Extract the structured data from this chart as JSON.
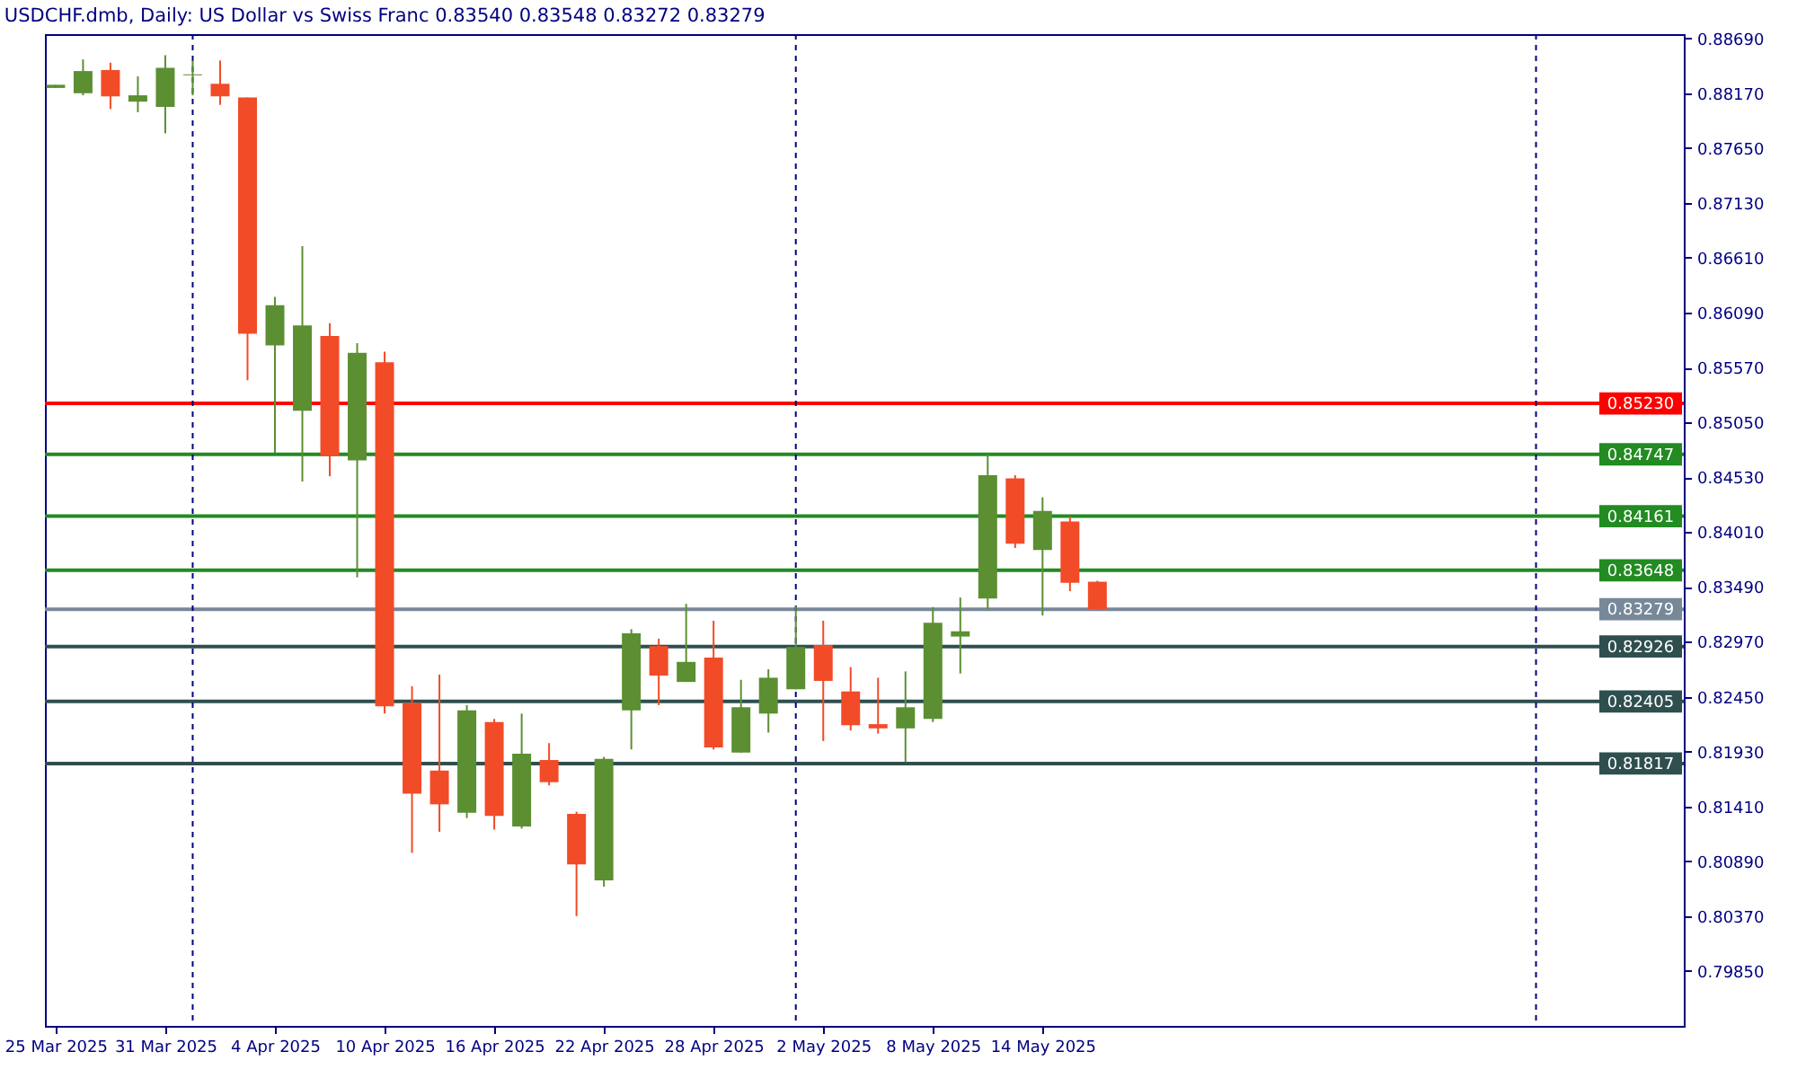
{
  "chart_data": {
    "type": "candlestick",
    "title": "USDCHF.dmb, Daily: US Dollar vs Swiss Franc 0.83540 0.83548 0.83272 0.83279",
    "categories": [
      "25 Mar 2025",
      null,
      null,
      null,
      "31 Mar 2025",
      null,
      null,
      null,
      "4 Apr 2025",
      null,
      null,
      null,
      "10 Apr 2025",
      null,
      null,
      null,
      "16 Apr 2025",
      null,
      null,
      null,
      "22 Apr 2025",
      null,
      null,
      null,
      "28 Apr 2025",
      null,
      null,
      null,
      "2 May 2025",
      null,
      null,
      null,
      "8 May 2025",
      null,
      null,
      null,
      "14 May 2025",
      null,
      null,
      null,
      null,
      null,
      null,
      null,
      null,
      null,
      null,
      null,
      null,
      null,
      null,
      null,
      null,
      null,
      null,
      null,
      null,
      null,
      null,
      null
    ],
    "ohlc": [
      [
        0.8822,
        0.8825,
        0.8822,
        0.8825
      ],
      [
        0.8817,
        0.8849,
        0.8815,
        0.8838
      ],
      [
        0.8839,
        0.8846,
        0.8802,
        0.8814
      ],
      [
        0.8809,
        0.8833,
        0.8799,
        0.8815
      ],
      [
        0.8804,
        0.8853,
        0.8779,
        0.8841
      ],
      [
        0.8834,
        0.8848,
        0.8815,
        0.8835
      ],
      [
        0.8826,
        0.8848,
        0.8806,
        0.8814
      ],
      [
        0.8813,
        0.8813,
        0.8545,
        0.8589
      ],
      [
        0.8578,
        0.8624,
        0.8476,
        0.8616
      ],
      [
        0.8516,
        0.8672,
        0.8449,
        0.8597
      ],
      [
        0.8587,
        0.8599,
        0.8454,
        0.8473
      ],
      [
        0.8469,
        0.858,
        0.8358,
        0.8571
      ],
      [
        0.8562,
        0.8572,
        0.8229,
        0.8236
      ],
      [
        0.8239,
        0.8255,
        0.8097,
        0.8153
      ],
      [
        0.8175,
        0.8266,
        0.8117,
        0.8143
      ],
      [
        0.8135,
        0.8237,
        0.813,
        0.8232
      ],
      [
        0.8221,
        0.8224,
        0.8119,
        0.8132
      ],
      [
        0.8122,
        0.8229,
        0.812,
        0.8191
      ],
      [
        0.8185,
        0.8201,
        0.8161,
        0.8164
      ],
      [
        0.8134,
        0.8136,
        0.8037,
        0.8086
      ],
      [
        0.8071,
        0.8188,
        0.8065,
        0.8186
      ],
      [
        0.8232,
        0.8309,
        0.8195,
        0.8305
      ],
      [
        0.8293,
        0.83,
        0.8237,
        0.8265
      ],
      [
        0.8259,
        0.8333,
        0.8259,
        0.8278
      ],
      [
        0.8282,
        0.8317,
        0.8195,
        0.8197
      ],
      [
        0.8192,
        0.8261,
        0.8192,
        0.8235
      ],
      [
        0.8229,
        0.8271,
        0.8211,
        0.8263
      ],
      [
        0.8252,
        0.8331,
        0.8252,
        0.8292
      ],
      [
        0.8294,
        0.8317,
        0.8203,
        0.826
      ],
      [
        0.825,
        0.8273,
        0.8213,
        0.8218
      ],
      [
        0.8219,
        0.8263,
        0.821,
        0.8215
      ],
      [
        0.8215,
        0.8269,
        0.8183,
        0.8235
      ],
      [
        0.8224,
        0.833,
        0.8221,
        0.8315
      ],
      [
        0.8302,
        0.8339,
        0.8267,
        0.8307
      ],
      [
        0.8338,
        0.8475,
        0.8328,
        0.8455
      ],
      [
        0.8452,
        0.8455,
        0.8386,
        0.839
      ],
      [
        0.8384,
        0.8434,
        0.8322,
        0.8421
      ],
      [
        0.8411,
        0.8416,
        0.8345,
        0.8353
      ],
      [
        0.8354,
        0.83548,
        0.83272,
        0.83279
      ],
      null,
      null,
      null,
      null,
      null,
      null,
      null,
      null,
      null,
      null,
      null,
      null,
      null,
      null,
      null,
      null,
      null,
      null,
      null,
      null,
      null
    ],
    "colors": [
      "#5b8f32",
      "#5b8f32",
      "#f24b28",
      "#5b8f32",
      "#5b8f32",
      "#5b8f32",
      "#f24b28",
      "#f24b28",
      "#5b8f32",
      "#5b8f32",
      "#f24b28",
      "#5b8f32",
      "#f24b28",
      "#f24b28",
      "#f24b28",
      "#5b8f32",
      "#f24b28",
      "#5b8f32",
      "#f24b28",
      "#f24b28",
      "#5b8f32",
      "#5b8f32",
      "#f24b28",
      "#5b8f32",
      "#f24b28",
      "#5b8f32",
      "#5b8f32",
      "#5b8f32",
      "#f24b28",
      "#f24b28",
      "#f24b28",
      "#5b8f32",
      "#5b8f32",
      "#5b8f32",
      "#5b8f32",
      "#f24b28",
      "#5b8f32",
      "#f24b28",
      "#f24b28",
      null,
      null,
      null,
      null,
      null,
      null,
      null,
      null,
      null,
      null,
      null,
      null,
      null,
      null,
      null,
      null,
      null,
      null,
      null,
      null,
      null
    ],
    "ylim": [
      0.7933,
      0.8873
    ],
    "yticks": [
      {
        "value": 0.8869,
        "label": "0.88690"
      },
      {
        "value": 0.8817,
        "label": "0.88170"
      },
      {
        "value": 0.8765,
        "label": "0.87650"
      },
      {
        "value": 0.8713,
        "label": "0.87130"
      },
      {
        "value": 0.8661,
        "label": "0.86610"
      },
      {
        "value": 0.8609,
        "label": "0.86090"
      },
      {
        "value": 0.8557,
        "label": "0.85570"
      },
      {
        "value": 0.8505,
        "label": "0.85050"
      },
      {
        "value": 0.8453,
        "label": "0.84530"
      },
      {
        "value": 0.8401,
        "label": "0.84010"
      },
      {
        "value": 0.8349,
        "label": "0.83490"
      },
      {
        "value": 0.8297,
        "label": "0.82970"
      },
      {
        "value": 0.8245,
        "label": "0.82450"
      },
      {
        "value": 0.8193,
        "label": "0.81930"
      },
      {
        "value": 0.8141,
        "label": "0.81410"
      },
      {
        "value": 0.8089,
        "label": "0.80890"
      },
      {
        "value": 0.8037,
        "label": "0.80370"
      },
      {
        "value": 0.7985,
        "label": "0.79850"
      }
    ],
    "grid": "x",
    "ref_lines": [
      {
        "axis": "y",
        "value": 0.8523,
        "label": "0.85230",
        "color": "#ff0000"
      },
      {
        "axis": "y",
        "value": 0.84747,
        "label": "0.84747",
        "color": "#228b22"
      },
      {
        "axis": "y",
        "value": 0.84161,
        "label": "0.84161",
        "color": "#228b22"
      },
      {
        "axis": "y",
        "value": 0.83648,
        "label": "0.83648",
        "color": "#228b22"
      },
      {
        "axis": "y",
        "value": 0.83279,
        "label": "0.83279",
        "color": "#778899"
      },
      {
        "axis": "y",
        "value": 0.82926,
        "label": "0.82926",
        "color": "#2f4f4f"
      },
      {
        "axis": "y",
        "value": 0.82405,
        "label": "0.82405",
        "color": "#2f4f4f"
      },
      {
        "axis": "y",
        "value": 0.81817,
        "label": "0.81817",
        "color": "#2f4f4f"
      }
    ]
  }
}
